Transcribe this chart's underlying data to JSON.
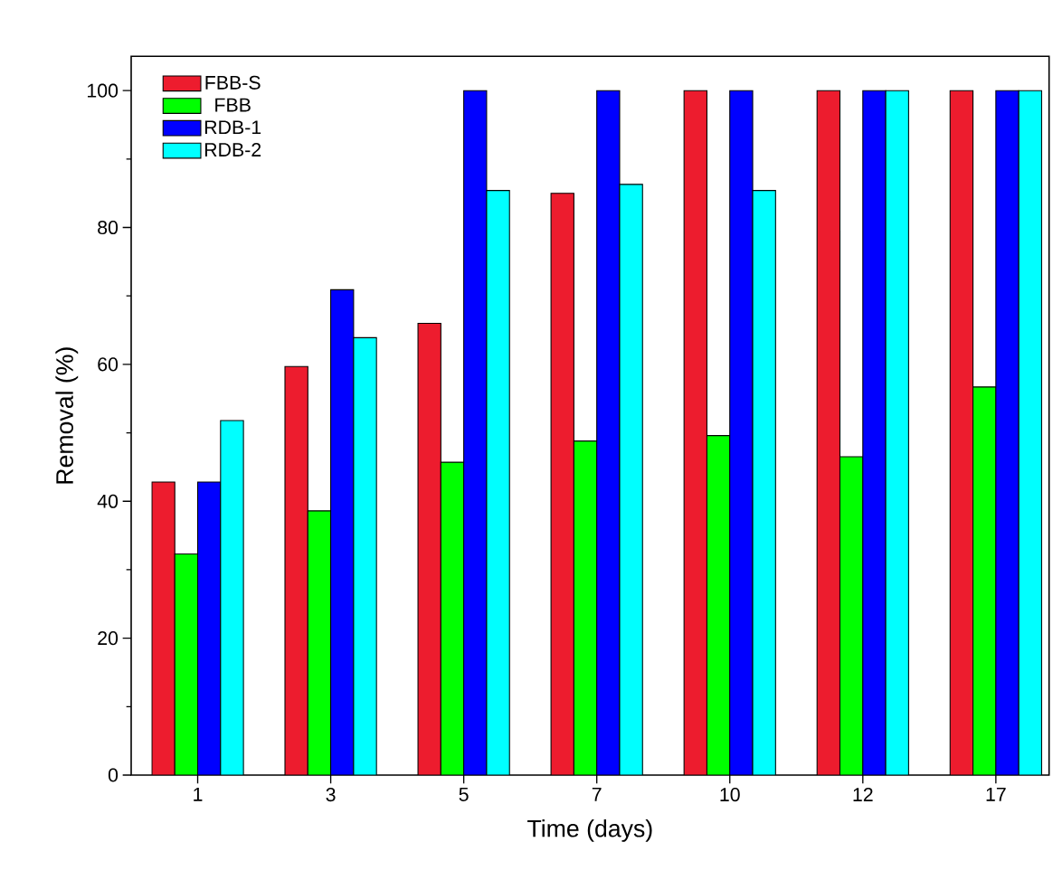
{
  "chart_data": {
    "type": "bar",
    "xlabel": "Time (days)",
    "ylabel": "Removal (%)",
    "categories": [
      "1",
      "3",
      "5",
      "7",
      "10",
      "12",
      "17"
    ],
    "series": [
      {
        "name": "FBB-S",
        "color": "#ed1c2e",
        "values": [
          42.8,
          59.7,
          66.0,
          85.0,
          100,
          100,
          100
        ]
      },
      {
        "name": "FBB",
        "color": "#00ff00",
        "values": [
          32.3,
          38.6,
          45.7,
          48.8,
          49.6,
          46.5,
          56.7
        ]
      },
      {
        "name": "RDB-1",
        "color": "#0000ff",
        "values": [
          42.8,
          70.9,
          100,
          100,
          100,
          100,
          100
        ]
      },
      {
        "name": "RDB-2",
        "color": "#00ffff",
        "values": [
          51.8,
          63.9,
          85.4,
          86.3,
          85.4,
          100,
          100
        ]
      }
    ],
    "ylim": [
      0,
      105
    ],
    "yticks": [
      0,
      20,
      40,
      60,
      80,
      100
    ],
    "grid": false,
    "legend": "top left"
  }
}
